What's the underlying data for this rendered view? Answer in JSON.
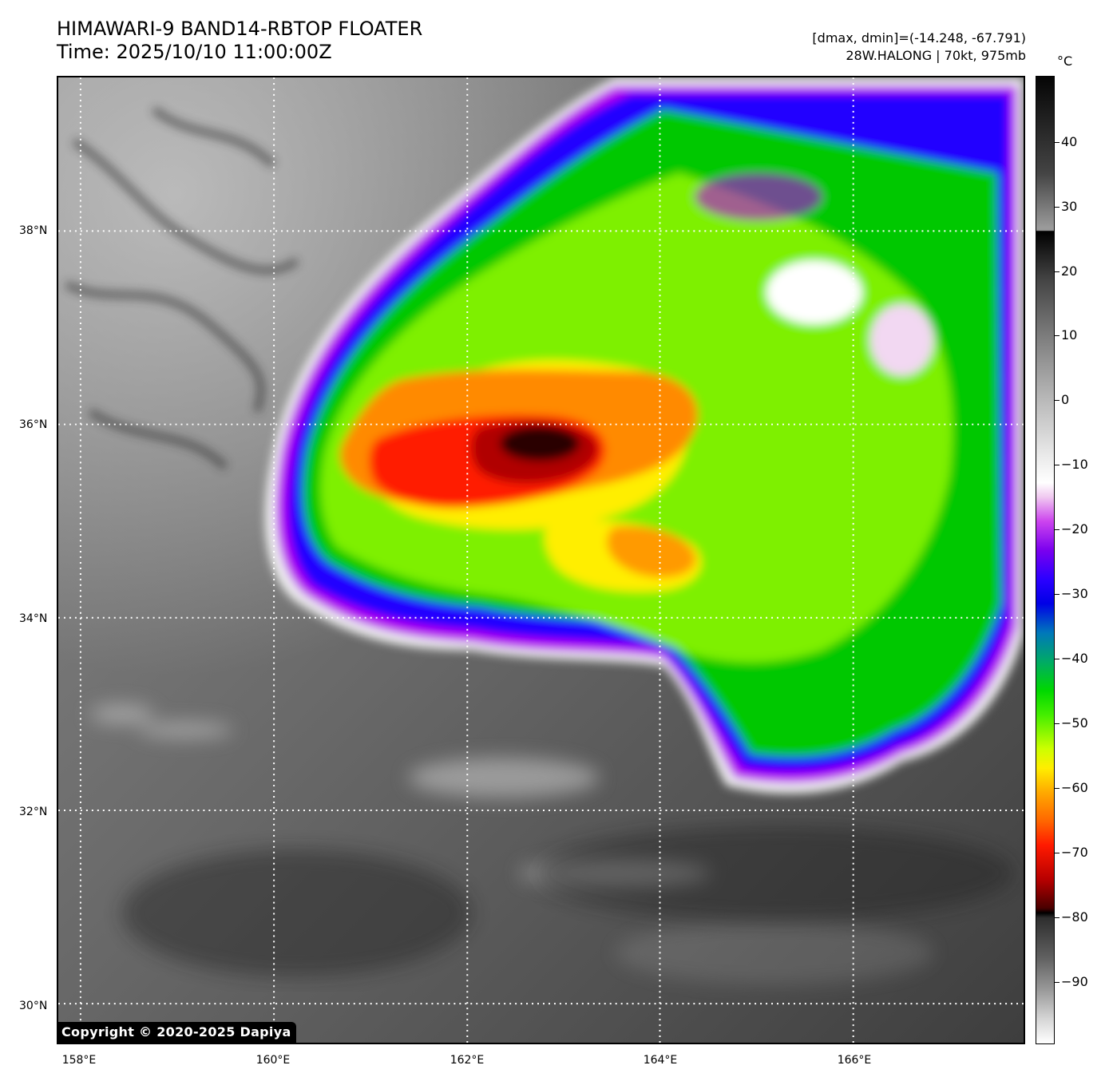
{
  "header": {
    "title_line1": "HIMAWARI-9 BAND14-RBTOP FLOATER",
    "title_line2": "Time: 2025/10/10 11:00:00Z",
    "stats_line1": "[dmax, dmin]=(-14.248, -67.791)",
    "stats_line2": "28W.HALONG | 70kt, 975mb"
  },
  "map": {
    "lat_labels": [
      "38°N",
      "36°N",
      "34°N",
      "32°N",
      "30°N"
    ],
    "lon_labels": [
      "158°E",
      "160°E",
      "162°E",
      "164°E",
      "166°E"
    ],
    "gridlines": "dotted white",
    "copyright": "Copyright © 2020-2025 Dapiya"
  },
  "colorbar": {
    "unit": "°C",
    "ticks": [
      "40",
      "30",
      "20",
      "10",
      "0",
      "−10",
      "−20",
      "−30",
      "−40",
      "−50",
      "−60",
      "−70",
      "−80",
      "−90"
    ],
    "colors": {
      "coldest": "#000000",
      "red": "#ff1a00",
      "orange": "#ffaa00",
      "yellow": "#ffee00",
      "green": "#00d800",
      "blue": "#0000e6",
      "purple": "#7a00ee",
      "warm_gray": "#7e7e7e"
    }
  }
}
